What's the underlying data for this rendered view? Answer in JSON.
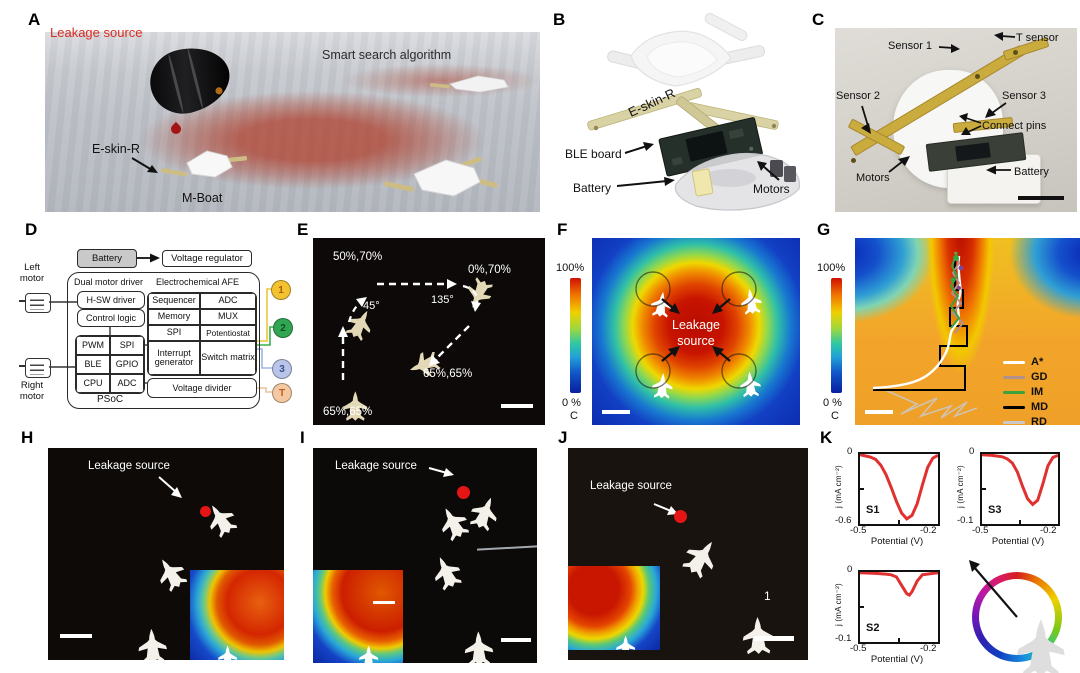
{
  "panelA": {
    "label": "A",
    "leakage_source": "Leakage source",
    "smart_search": "Smart search algorithm",
    "eskin": "E-skin-R",
    "mboat": "M-Boat"
  },
  "panelB": {
    "label": "B",
    "eskin": "E-skin-R",
    "ble_board": "BLE board",
    "battery": "Battery",
    "motors": "Motors"
  },
  "panelC": {
    "label": "C",
    "sensor1": "Sensor 1",
    "t_sensor": "T sensor",
    "sensor2": "Sensor 2",
    "sensor3": "Sensor 3",
    "connect_pins": "Connect pins",
    "motors": "Motors",
    "battery": "Battery"
  },
  "panelD": {
    "label": "D",
    "battery": "Battery",
    "voltage_regulator": "Voltage regulator",
    "left_motor": "Left motor",
    "right_motor": "Right motor",
    "dual_motor_driver": "Dual motor driver",
    "electrochemical_afe": "Electrochemical AFE",
    "hsw_driver": "H-SW driver",
    "control_logic": "Control logic",
    "psoc": "PSoC",
    "voltage_divider": "Voltage divider",
    "mcu_cells": [
      "PWM",
      "SPI",
      "BLE",
      "GPIO",
      "CPU",
      "ADC"
    ],
    "afe_cells": [
      "Sequencer",
      "ADC",
      "Memory",
      "MUX",
      "SPI",
      "Potentiostat",
      "Interrupt generator",
      "Switch matrix"
    ],
    "ports": [
      {
        "label": "1",
        "bg": "#f2c230",
        "fg": "#b05a00"
      },
      {
        "label": "2",
        "bg": "#31a552",
        "fg": "#0d4f24"
      },
      {
        "label": "3",
        "bg": "#b9c5e8",
        "fg": "#3c4f8e"
      },
      {
        "label": "T",
        "bg": "#f4c9a2",
        "fg": "#bf5c1a"
      }
    ]
  },
  "panelE": {
    "label": "E",
    "speed_top_left": "50%,70%",
    "speed_top_right": "0%,70%",
    "angle_left": "45°",
    "angle_right": "135°",
    "speed_middle": "65%,65%",
    "speed_bottom": "65%,65%"
  },
  "panelF": {
    "label": "F",
    "cbar_max": "100%",
    "cbar_min": "0 %",
    "cbar_unit": "C",
    "center_line1": "Leakage",
    "center_line2": "source"
  },
  "panelG": {
    "label": "G",
    "cbar_max": "100%",
    "cbar_min": "0 %",
    "cbar_unit": "C",
    "legend": [
      {
        "label": "A*",
        "color": "#ffffff"
      },
      {
        "label": "GD",
        "color": "#b2908e"
      },
      {
        "label": "IM",
        "color": "#3da23e"
      },
      {
        "label": "MD",
        "color": "#000000"
      },
      {
        "label": "RD",
        "color": "#c9c9c9"
      }
    ]
  },
  "panelH": {
    "label": "H",
    "leakage": "Leakage source"
  },
  "panelI": {
    "label": "I",
    "leakage": "Leakage source"
  },
  "panelJ": {
    "label": "J",
    "leakage": "Leakage source",
    "boat_tag": "1"
  },
  "panelK": {
    "label": "K",
    "ylabel": "j (mA cm⁻²)",
    "xlabel": "Potential (V)",
    "x_tick_left": "-0.5",
    "x_tick_right": "-0.2",
    "curve_color": "#e03131",
    "plots": [
      {
        "name": "S1",
        "y_top": "0",
        "y_bottom": "-0.6"
      },
      {
        "name": "S3",
        "y_top": "0",
        "y_bottom": "-0.1"
      },
      {
        "name": "S2",
        "y_top": "0",
        "y_bottom": "-0.1"
      }
    ]
  },
  "chart_data": [
    {
      "type": "line",
      "title": "S1",
      "xlabel": "Potential (V)",
      "ylabel": "j (mA cm⁻²)",
      "xlim": [
        -0.5,
        -0.2
      ],
      "ylim": [
        -0.6,
        0
      ],
      "grid": false,
      "series": [
        {
          "name": "S1",
          "x": [
            -0.5,
            -0.48,
            -0.46,
            -0.44,
            -0.42,
            -0.4,
            -0.38,
            -0.36,
            -0.34,
            -0.32,
            -0.3,
            -0.28,
            -0.26,
            -0.24,
            -0.22,
            -0.2
          ],
          "y": [
            0,
            -0.01,
            -0.02,
            -0.04,
            -0.09,
            -0.17,
            -0.28,
            -0.4,
            -0.5,
            -0.55,
            -0.52,
            -0.42,
            -0.26,
            -0.11,
            -0.03,
            -0.005
          ]
        }
      ]
    },
    {
      "type": "line",
      "title": "S3",
      "xlabel": "Potential (V)",
      "ylabel": "j (mA cm⁻²)",
      "xlim": [
        -0.5,
        -0.2
      ],
      "ylim": [
        -0.1,
        0
      ],
      "grid": false,
      "series": [
        {
          "name": "S3",
          "x": [
            -0.5,
            -0.46,
            -0.42,
            -0.4,
            -0.38,
            -0.36,
            -0.34,
            -0.32,
            -0.3,
            -0.28,
            -0.26,
            -0.24,
            -0.22,
            -0.2
          ],
          "y": [
            0,
            -0.001,
            -0.003,
            -0.006,
            -0.012,
            -0.025,
            -0.045,
            -0.063,
            -0.071,
            -0.065,
            -0.042,
            -0.016,
            -0.004,
            -0.001
          ]
        }
      ]
    },
    {
      "type": "line",
      "title": "S2",
      "xlabel": "Potential (V)",
      "ylabel": "j (mA cm⁻²)",
      "xlim": [
        -0.5,
        -0.2
      ],
      "ylim": [
        -0.1,
        0
      ],
      "grid": false,
      "series": [
        {
          "name": "S2",
          "x": [
            -0.5,
            -0.44,
            -0.4,
            -0.38,
            -0.36,
            -0.34,
            -0.32,
            -0.31,
            -0.3,
            -0.28,
            -0.26,
            -0.22,
            -0.2
          ],
          "y": [
            0,
            -0.001,
            -0.002,
            -0.003,
            -0.006,
            -0.018,
            -0.03,
            -0.032,
            -0.027,
            -0.012,
            -0.003,
            -0.001,
            0
          ]
        }
      ]
    }
  ]
}
